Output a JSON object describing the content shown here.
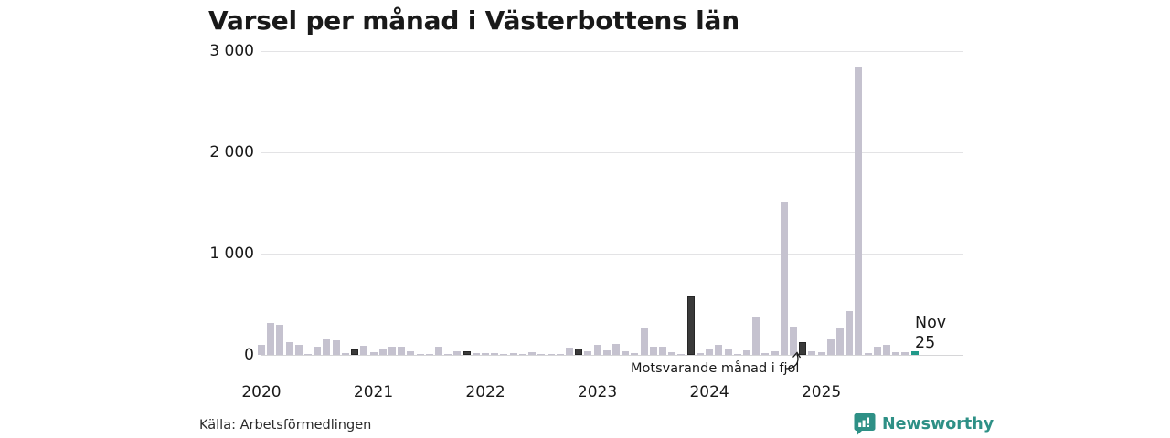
{
  "title": "Varsel per månad i Västerbottens län",
  "source": "Källa: Arbetsförmedlingen",
  "branding": {
    "logo_text": "Newsworthy",
    "logo_icon": "bar-chart-speech-bubble-icon",
    "brand_color": "#2e9086"
  },
  "annotations": {
    "fjol_label": "Motsvarande månad i fjol",
    "current_month_line1": "Nov",
    "current_month_line2": "25"
  },
  "colors": {
    "bar_normal": "#c5c2cf",
    "bar_november_previous_years": "#3a3a3a",
    "bar_current_month": "#21998a",
    "gridline": "#e3e3e5",
    "text": "#191919"
  },
  "chart_data": {
    "type": "bar",
    "title": "Varsel per månad i Västerbottens län",
    "xlabel": "",
    "ylabel": "",
    "ylim": [
      0,
      3000
    ],
    "y_tick_labels": [
      "3 000",
      "2 000",
      "1 000",
      "0"
    ],
    "y_tick_values": [
      3000,
      2000,
      1000,
      0
    ],
    "x_tick_labels": [
      "2020",
      "2021",
      "2022",
      "2023",
      "2024",
      "2025"
    ],
    "grid": "horizontal",
    "legend_position": "none",
    "highlight_rule_dark": "November of previous years (Motsvarande månad i fjol)",
    "highlight_rule_teal": "Current month Nov 2025",
    "points": [
      {
        "m": "2020-01",
        "v": 100
      },
      {
        "m": "2020-02",
        "v": 315
      },
      {
        "m": "2020-03",
        "v": 295
      },
      {
        "m": "2020-04",
        "v": 125
      },
      {
        "m": "2020-05",
        "v": 95
      },
      {
        "m": "2020-06",
        "v": 10
      },
      {
        "m": "2020-07",
        "v": 85
      },
      {
        "m": "2020-08",
        "v": 165
      },
      {
        "m": "2020-09",
        "v": 140
      },
      {
        "m": "2020-10",
        "v": 15
      },
      {
        "m": "2020-11",
        "v": 50,
        "k": "f"
      },
      {
        "m": "2020-12",
        "v": 90
      },
      {
        "m": "2021-01",
        "v": 30
      },
      {
        "m": "2021-02",
        "v": 65
      },
      {
        "m": "2021-03",
        "v": 85
      },
      {
        "m": "2021-04",
        "v": 80
      },
      {
        "m": "2021-05",
        "v": 35
      },
      {
        "m": "2021-06",
        "v": 10
      },
      {
        "m": "2021-07",
        "v": 5
      },
      {
        "m": "2021-08",
        "v": 85
      },
      {
        "m": "2021-09",
        "v": 10
      },
      {
        "m": "2021-10",
        "v": 35
      },
      {
        "m": "2021-11",
        "v": 35,
        "k": "f"
      },
      {
        "m": "2021-12",
        "v": 15
      },
      {
        "m": "2022-01",
        "v": 15
      },
      {
        "m": "2022-02",
        "v": 15
      },
      {
        "m": "2022-03",
        "v": 5
      },
      {
        "m": "2022-04",
        "v": 15
      },
      {
        "m": "2022-05",
        "v": 5
      },
      {
        "m": "2022-06",
        "v": 25
      },
      {
        "m": "2022-07",
        "v": 10
      },
      {
        "m": "2022-08",
        "v": 10
      },
      {
        "m": "2022-09",
        "v": 10
      },
      {
        "m": "2022-10",
        "v": 70
      },
      {
        "m": "2022-11",
        "v": 65,
        "k": "f"
      },
      {
        "m": "2022-12",
        "v": 35
      },
      {
        "m": "2023-01",
        "v": 95
      },
      {
        "m": "2023-02",
        "v": 45
      },
      {
        "m": "2023-03",
        "v": 110
      },
      {
        "m": "2023-04",
        "v": 35
      },
      {
        "m": "2023-05",
        "v": 15
      },
      {
        "m": "2023-06",
        "v": 260
      },
      {
        "m": "2023-07",
        "v": 80
      },
      {
        "m": "2023-08",
        "v": 80
      },
      {
        "m": "2023-09",
        "v": 25
      },
      {
        "m": "2023-10",
        "v": 10
      },
      {
        "m": "2023-11",
        "v": 585,
        "k": "f"
      },
      {
        "m": "2023-12",
        "v": 15
      },
      {
        "m": "2024-01",
        "v": 50
      },
      {
        "m": "2024-02",
        "v": 100
      },
      {
        "m": "2024-03",
        "v": 65
      },
      {
        "m": "2024-04",
        "v": 5
      },
      {
        "m": "2024-05",
        "v": 45
      },
      {
        "m": "2024-06",
        "v": 380
      },
      {
        "m": "2024-07",
        "v": 15
      },
      {
        "m": "2024-08",
        "v": 35
      },
      {
        "m": "2024-09",
        "v": 1510
      },
      {
        "m": "2024-10",
        "v": 280
      },
      {
        "m": "2024-11",
        "v": 125,
        "k": "f"
      },
      {
        "m": "2024-12",
        "v": 35
      },
      {
        "m": "2025-01",
        "v": 30
      },
      {
        "m": "2025-02",
        "v": 155
      },
      {
        "m": "2025-03",
        "v": 270
      },
      {
        "m": "2025-04",
        "v": 430
      },
      {
        "m": "2025-05",
        "v": 2850
      },
      {
        "m": "2025-06",
        "v": 15
      },
      {
        "m": "2025-07",
        "v": 80
      },
      {
        "m": "2025-08",
        "v": 95
      },
      {
        "m": "2025-09",
        "v": 25
      },
      {
        "m": "2025-10",
        "v": 30
      },
      {
        "m": "2025-11",
        "v": 40,
        "k": "c"
      }
    ]
  }
}
